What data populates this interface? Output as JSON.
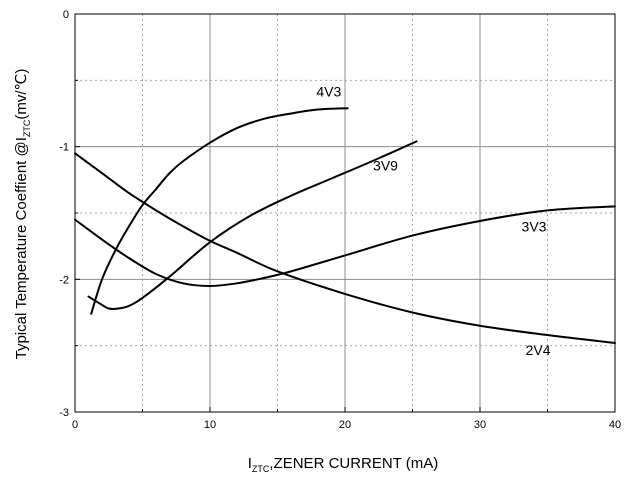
{
  "chart_data": {
    "type": "line",
    "xlabel": {
      "main": "I",
      "subscript": "ZTC",
      "rest": ",ZENER CURRENT (mA)"
    },
    "ylabel": {
      "main": "Typical Temperature Coeffient @I",
      "subscript": "ZTC",
      "rest": "(mv/℃)"
    },
    "xlim": [
      0,
      40
    ],
    "ylim": [
      -3,
      0
    ],
    "x_ticks": [
      "0",
      "10",
      "20",
      "30",
      "40"
    ],
    "y_ticks": [
      "0",
      "-1",
      "-2",
      "-3"
    ],
    "grid": {
      "major": "solid",
      "minor": "dotted"
    },
    "series": [
      {
        "name": "4V3",
        "label_x": 18.8,
        "label_y": -0.62,
        "x": [
          1.2,
          2,
          3,
          4,
          5,
          6,
          7,
          8,
          10,
          12,
          14,
          16,
          18,
          20.2
        ],
        "y": [
          -2.26,
          -2.0,
          -1.78,
          -1.6,
          -1.44,
          -1.32,
          -1.2,
          -1.11,
          -0.97,
          -0.86,
          -0.79,
          -0.75,
          -0.72,
          -0.71
        ]
      },
      {
        "name": "3V9",
        "label_x": 23,
        "label_y": -1.18,
        "x": [
          1.0,
          1.8,
          2.5,
          3.2,
          4,
          5,
          7,
          10,
          13,
          16,
          19,
          22,
          25.3
        ],
        "y": [
          -2.13,
          -2.18,
          -2.22,
          -2.22,
          -2.2,
          -2.14,
          -1.98,
          -1.72,
          -1.52,
          -1.37,
          -1.24,
          -1.11,
          -0.96
        ]
      },
      {
        "name": "3V3",
        "label_x": 34,
        "label_y": -1.64,
        "x": [
          0,
          2,
          4,
          6,
          8,
          10,
          12,
          14,
          16,
          20,
          25,
          30,
          35,
          40
        ],
        "y": [
          -1.55,
          -1.7,
          -1.84,
          -1.96,
          -2.03,
          -2.05,
          -2.03,
          -1.99,
          -1.94,
          -1.82,
          -1.67,
          -1.56,
          -1.48,
          -1.45
        ]
      },
      {
        "name": "2V4",
        "label_x": 34.3,
        "label_y": -2.57,
        "x": [
          0,
          2,
          4,
          6,
          8,
          10,
          12,
          15,
          20,
          25,
          30,
          35,
          40
        ],
        "y": [
          -1.05,
          -1.2,
          -1.35,
          -1.48,
          -1.6,
          -1.71,
          -1.8,
          -1.94,
          -2.11,
          -2.25,
          -2.35,
          -2.42,
          -2.48
        ]
      }
    ]
  }
}
